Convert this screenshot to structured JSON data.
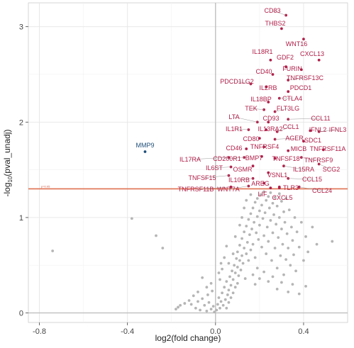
{
  "chart_data": {
    "type": "scatter",
    "title": "",
    "xlabel": "log2(fold change)",
    "ylabel_main": "-log",
    "ylabel_sub": "10",
    "ylabel_rest": "(pval_unadj)",
    "xlim": [
      -0.85,
      0.6
    ],
    "ylim": [
      -0.1,
      3.25
    ],
    "xticks": [
      -0.8,
      -0.4,
      0.0,
      0.4
    ],
    "xtick_labels": [
      "-0.8",
      "-0.4",
      "0.0",
      "0.4"
    ],
    "yticks": [
      0,
      1,
      2,
      3
    ],
    "ytick_labels": [
      "0",
      "1",
      "2",
      "3"
    ],
    "grid": true,
    "threshold": {
      "y": 1.301,
      "label": "p=0.05",
      "color": "#e07050"
    },
    "zero_lines": {
      "x": 0,
      "y": 0,
      "color": "#bbbbbb"
    },
    "colors": {
      "up": "#b0204a",
      "down": "#1f4e79",
      "ns": "#b5b5b5"
    },
    "significant_up": [
      {
        "name": "CD83",
        "x": 0.32,
        "y": 3.12
      },
      {
        "name": "THBS2",
        "x": 0.3,
        "y": 2.98
      },
      {
        "name": "WNT16",
        "x": 0.4,
        "y": 2.87
      },
      {
        "name": "CXCL13",
        "x": 0.47,
        "y": 2.65
      },
      {
        "name": "IL18R1",
        "x": 0.25,
        "y": 2.65
      },
      {
        "name": "GDF2",
        "x": 0.32,
        "y": 2.58
      },
      {
        "name": "FURIN",
        "x": 0.39,
        "y": 2.55
      },
      {
        "name": "CD40",
        "x": 0.26,
        "y": 2.5
      },
      {
        "name": "TNFRSF13C",
        "x": 0.33,
        "y": 2.44
      },
      {
        "name": "PDCD1LG2",
        "x": 0.16,
        "y": 2.4
      },
      {
        "name": "IL2RB",
        "x": 0.23,
        "y": 2.37
      },
      {
        "name": "PDCD1",
        "x": 0.33,
        "y": 2.32
      },
      {
        "name": "CTLA4",
        "x": 0.29,
        "y": 2.25
      },
      {
        "name": "IL18BP",
        "x": 0.24,
        "y": 2.21
      },
      {
        "name": "TEK",
        "x": 0.22,
        "y": 2.13
      },
      {
        "name": "FLT3LG",
        "x": 0.27,
        "y": 2.11
      },
      {
        "name": "CCL11",
        "x": 0.33,
        "y": 2.03
      },
      {
        "name": "LTA",
        "x": 0.19,
        "y": 2.0
      },
      {
        "name": "CD93",
        "x": 0.24,
        "y": 2.0
      },
      {
        "name": "IL1R1",
        "x": 0.15,
        "y": 1.92
      },
      {
        "name": "IL13RA2",
        "x": 0.23,
        "y": 1.92
      },
      {
        "name": "CCL1",
        "x": 0.28,
        "y": 1.9
      },
      {
        "name": "IFNL2",
        "x": 0.43,
        "y": 1.91
      },
      {
        "name": "IFNL3",
        "x": 0.47,
        "y": 1.9
      },
      {
        "name": "CD80",
        "x": 0.2,
        "y": 1.83
      },
      {
        "name": "AGER",
        "x": 0.27,
        "y": 1.82
      },
      {
        "name": "SDC1",
        "x": 0.4,
        "y": 1.8
      },
      {
        "name": "CD46",
        "x": 0.14,
        "y": 1.72
      },
      {
        "name": "TNFRSF4",
        "x": 0.22,
        "y": 1.74
      },
      {
        "name": "MICB",
        "x": 0.33,
        "y": 1.7
      },
      {
        "name": "TNFRSF11A",
        "x": 0.49,
        "y": 1.71
      },
      {
        "name": "IL17RA",
        "x": 0.06,
        "y": 1.63
      },
      {
        "name": "CD200R1",
        "x": 0.13,
        "y": 1.63
      },
      {
        "name": "BMP7",
        "x": 0.21,
        "y": 1.64
      },
      {
        "name": "TNFSF18",
        "x": 0.27,
        "y": 1.62
      },
      {
        "name": "TNFRSF9",
        "x": 0.39,
        "y": 1.63
      },
      {
        "name": "SCG2",
        "x": 0.47,
        "y": 1.56
      },
      {
        "name": "IL6ST",
        "x": 0.07,
        "y": 1.53
      },
      {
        "name": "OSMR",
        "x": 0.17,
        "y": 1.54
      },
      {
        "name": "IL15RA",
        "x": 0.31,
        "y": 1.54
      },
      {
        "name": "VSNL1",
        "x": 0.24,
        "y": 1.47
      },
      {
        "name": "TNFSF15",
        "x": 0.06,
        "y": 1.44
      },
      {
        "name": "IL10RB",
        "x": 0.17,
        "y": 1.41
      },
      {
        "name": "CCL15",
        "x": 0.33,
        "y": 1.41
      },
      {
        "name": "AREG",
        "x": 0.22,
        "y": 1.36
      },
      {
        "name": "TNFRSF11B",
        "x": 0.07,
        "y": 1.32
      },
      {
        "name": "WNT7A",
        "x": 0.15,
        "y": 1.33
      },
      {
        "name": "TLR3",
        "x": 0.29,
        "y": 1.32
      },
      {
        "name": "CCL24",
        "x": 0.38,
        "y": 1.32
      },
      {
        "name": "LIF",
        "x": 0.25,
        "y": 1.31
      },
      {
        "name": "CXCL5",
        "x": 0.29,
        "y": 1.31
      }
    ],
    "significant_down": [
      {
        "name": "MMP9",
        "x": -0.32,
        "y": 1.69
      }
    ],
    "nonsignificant": [
      [
        -0.74,
        0.65
      ],
      [
        -0.38,
        0.99
      ],
      [
        -0.27,
        0.81
      ],
      [
        -0.24,
        0.68
      ],
      [
        0.53,
        0.75
      ],
      [
        -0.18,
        0.04
      ],
      [
        -0.17,
        0.06
      ],
      [
        -0.11,
        0.09
      ],
      [
        -0.09,
        0.05
      ],
      [
        -0.08,
        0.12
      ],
      [
        -0.07,
        0.03
      ],
      [
        -0.06,
        0.15
      ],
      [
        -0.05,
        0.08
      ],
      [
        -0.04,
        0.02
      ],
      [
        -0.035,
        0.19
      ],
      [
        -0.03,
        0.11
      ],
      [
        -0.02,
        0.04
      ],
      [
        -0.015,
        0.23
      ],
      [
        -0.01,
        0.07
      ],
      [
        -0.005,
        0.01
      ],
      [
        0.005,
        0.03
      ],
      [
        0.01,
        0.09
      ],
      [
        0.015,
        0.16
      ],
      [
        0.02,
        0.05
      ],
      [
        0.025,
        0.12
      ],
      [
        0.03,
        0.21
      ],
      [
        0.035,
        0.08
      ],
      [
        0.04,
        0.27
      ],
      [
        0.045,
        0.14
      ],
      [
        0.05,
        0.33
      ],
      [
        0.05,
        0.05
      ],
      [
        0.055,
        0.19
      ],
      [
        0.06,
        0.24
      ],
      [
        0.06,
        0.11
      ],
      [
        0.065,
        0.38
      ],
      [
        0.07,
        0.16
      ],
      [
        0.07,
        0.29
      ],
      [
        0.075,
        0.44
      ],
      [
        0.08,
        0.21
      ],
      [
        0.08,
        0.35
      ],
      [
        0.085,
        0.5
      ],
      [
        0.09,
        0.27
      ],
      [
        0.09,
        0.42
      ],
      [
        0.095,
        0.57
      ],
      [
        0.1,
        0.31
      ],
      [
        0.1,
        0.48
      ],
      [
        0.1,
        0.64
      ],
      [
        0.105,
        0.39
      ],
      [
        0.11,
        0.55
      ],
      [
        0.11,
        0.71
      ],
      [
        0.115,
        0.45
      ],
      [
        0.12,
        0.6
      ],
      [
        0.12,
        0.78
      ],
      [
        0.125,
        0.52
      ],
      [
        0.13,
        0.68
      ],
      [
        0.13,
        0.85
      ],
      [
        0.135,
        0.36
      ],
      [
        0.14,
        0.62
      ],
      [
        0.14,
        0.91
      ],
      [
        0.145,
        0.74
      ],
      [
        0.15,
        0.98
      ],
      [
        0.15,
        0.55
      ],
      [
        0.155,
        0.82
      ],
      [
        0.16,
        1.04
      ],
      [
        0.16,
        0.66
      ],
      [
        0.165,
        0.88
      ],
      [
        0.17,
        1.1
      ],
      [
        0.17,
        0.72
      ],
      [
        0.175,
        0.95
      ],
      [
        0.18,
        1.16
      ],
      [
        0.18,
        0.58
      ],
      [
        0.185,
        0.84
      ],
      [
        0.19,
        1.01
      ],
      [
        0.19,
        1.2
      ],
      [
        0.195,
        0.77
      ],
      [
        0.2,
        1.07
      ],
      [
        0.2,
        0.92
      ],
      [
        0.205,
        1.24
      ],
      [
        0.21,
        0.69
      ],
      [
        0.21,
        1.13
      ],
      [
        0.215,
        0.99
      ],
      [
        0.22,
        1.27
      ],
      [
        0.22,
        0.81
      ],
      [
        0.225,
        1.05
      ],
      [
        0.23,
        1.18
      ],
      [
        0.23,
        0.62
      ],
      [
        0.235,
        0.9
      ],
      [
        0.24,
        1.22
      ],
      [
        0.24,
        0.75
      ],
      [
        0.245,
        1.1
      ],
      [
        0.25,
        0.97
      ],
      [
        0.25,
        1.26
      ],
      [
        0.255,
        0.55
      ],
      [
        0.26,
        1.15
      ],
      [
        0.26,
        0.84
      ],
      [
        0.265,
        1.03
      ],
      [
        0.27,
        0.68
      ],
      [
        0.27,
        1.21
      ],
      [
        0.275,
        0.93
      ],
      [
        0.28,
        1.12
      ],
      [
        0.28,
        0.47
      ],
      [
        0.285,
        0.79
      ],
      [
        0.29,
        1.0
      ],
      [
        0.29,
        1.25
      ],
      [
        0.295,
        0.6
      ],
      [
        0.3,
        0.88
      ],
      [
        0.3,
        1.17
      ],
      [
        0.305,
        0.72
      ],
      [
        0.31,
        1.06
      ],
      [
        0.31,
        0.4
      ],
      [
        0.315,
        0.95
      ],
      [
        0.32,
        0.56
      ],
      [
        0.32,
        1.2
      ],
      [
        0.325,
        0.83
      ],
      [
        0.33,
        0.68
      ],
      [
        0.335,
        1.08
      ],
      [
        0.34,
        0.5
      ],
      [
        0.345,
        0.9
      ],
      [
        0.35,
        0.76
      ],
      [
        0.355,
        0.61
      ],
      [
        0.36,
        1.0
      ],
      [
        0.365,
        0.44
      ],
      [
        0.37,
        0.85
      ],
      [
        0.38,
        0.69
      ],
      [
        0.39,
        0.95
      ],
      [
        0.4,
        0.55
      ],
      [
        0.41,
        0.8
      ],
      [
        0.42,
        0.64
      ],
      [
        0.44,
        0.9
      ],
      [
        0.46,
        0.72
      ],
      [
        0.02,
        0.35
      ],
      [
        0.03,
        0.46
      ],
      [
        0.04,
        0.58
      ],
      [
        0.05,
        0.7
      ],
      [
        0.06,
        0.52
      ],
      [
        0.08,
        0.62
      ],
      [
        0.09,
        0.8
      ],
      [
        0.11,
        0.92
      ],
      [
        0.12,
        1.0
      ],
      [
        0.13,
        1.1
      ],
      [
        0.14,
        1.18
      ],
      [
        0.16,
        1.24
      ],
      [
        0.17,
        0.4
      ],
      [
        0.18,
        0.3
      ],
      [
        0.19,
        0.47
      ],
      [
        0.2,
        0.36
      ],
      [
        0.22,
        0.43
      ],
      [
        0.24,
        0.33
      ],
      [
        0.26,
        0.38
      ],
      [
        0.28,
        0.25
      ],
      [
        0.3,
        0.32
      ],
      [
        0.33,
        0.22
      ],
      [
        0.35,
        0.3
      ],
      [
        0.38,
        0.2
      ],
      [
        0.41,
        0.28
      ],
      [
        -0.02,
        0.31
      ],
      [
        -0.04,
        0.27
      ],
      [
        -0.06,
        0.37
      ],
      [
        -0.08,
        0.22
      ],
      [
        -0.1,
        0.18
      ],
      [
        -0.12,
        0.13
      ],
      [
        -0.14,
        0.1
      ],
      [
        -0.16,
        0.08
      ],
      [
        0.015,
        0.42
      ],
      [
        0.025,
        0.52
      ]
    ]
  }
}
